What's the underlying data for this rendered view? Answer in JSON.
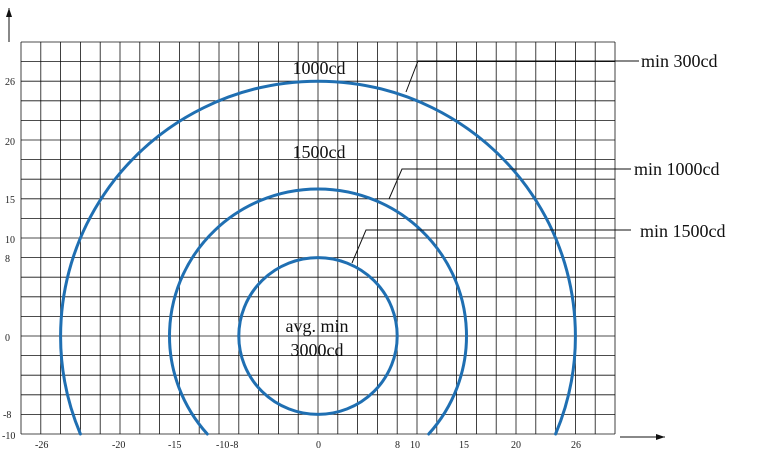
{
  "figure": {
    "x_ticks": [
      "-26",
      "-20",
      "-15",
      "-10",
      "-8",
      "0",
      "8",
      "10",
      "15",
      "20",
      "26"
    ],
    "y_ticks": [
      "26",
      "20",
      "15",
      "10",
      "8",
      "0",
      "-8",
      "-10"
    ],
    "zone_labels": {
      "outer": "1000cd",
      "middle": "1500cd",
      "inner_line1": "avg. min",
      "inner_line2": "3000cd"
    },
    "callouts": {
      "outer": "min 300cd",
      "middle": "min 1000cd",
      "inner": "min 1500cd"
    },
    "colors": {
      "grid": "#111111",
      "curve": "#1f6fb2",
      "text": "#111111"
    }
  },
  "chart_data": {
    "type": "line",
    "series": [
      {
        "name": "min 300cd",
        "radius": 26,
        "x_range": [
          -26,
          26
        ],
        "y_range": [
          -10,
          26
        ]
      },
      {
        "name": "min 1000cd",
        "radius": 15,
        "x_range": [
          -15,
          15
        ],
        "y_range": [
          -10,
          15
        ]
      },
      {
        "name": "min 1500cd",
        "radius": 8,
        "x_range": [
          -8,
          8
        ],
        "y_range": [
          -8,
          8
        ]
      }
    ],
    "xlim": [
      -30,
      30
    ],
    "ylim": [
      -10,
      30
    ],
    "grid": true
  }
}
